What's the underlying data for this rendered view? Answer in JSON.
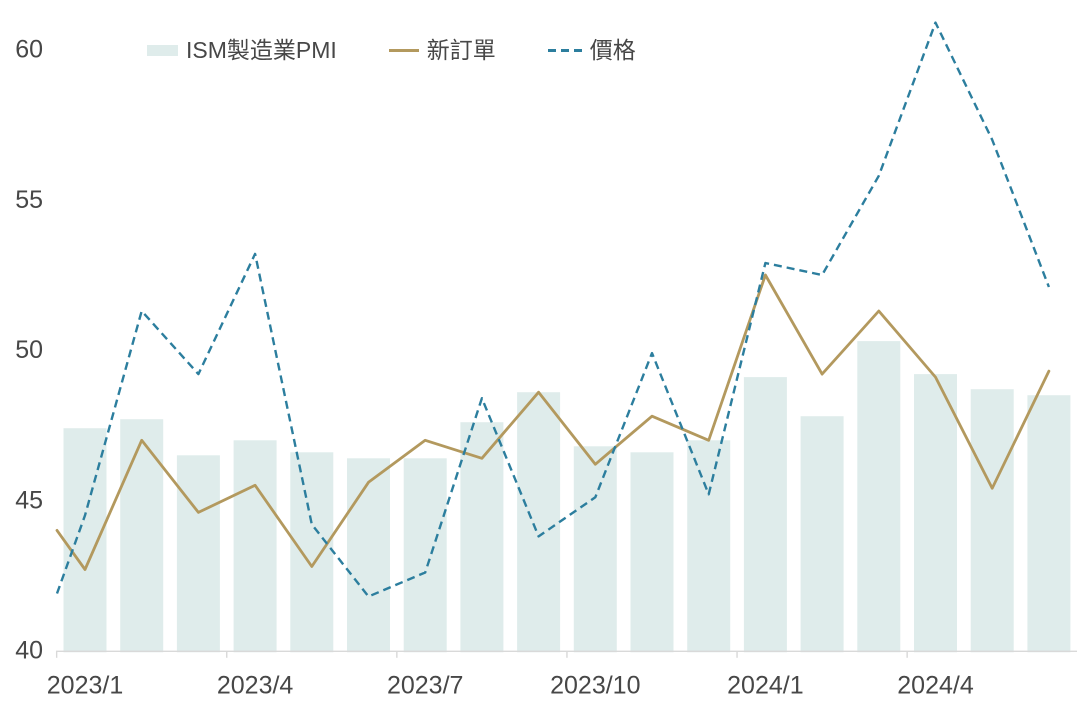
{
  "chart_data": {
    "type": "bar+line combo",
    "title": "",
    "categories": [
      "2023/1",
      "2023/2",
      "2023/3",
      "2023/4",
      "2023/5",
      "2023/6",
      "2023/7",
      "2023/8",
      "2023/9",
      "2023/10",
      "2023/11",
      "2023/12",
      "2024/1",
      "2024/2",
      "2024/3",
      "2024/4",
      "2024/5",
      "2024/6"
    ],
    "series": [
      {
        "name": "ISM製造業PMI",
        "type": "bar",
        "color": "#DFECEB",
        "values": [
          47.4,
          47.7,
          46.5,
          47.0,
          46.6,
          46.4,
          46.4,
          47.6,
          48.6,
          46.8,
          46.6,
          47.0,
          49.1,
          47.8,
          50.3,
          49.2,
          48.7,
          48.5
        ]
      },
      {
        "name": "新訂單",
        "type": "line",
        "color": "#B3995E",
        "values": [
          42.7,
          47.0,
          44.6,
          45.5,
          42.8,
          45.6,
          47.0,
          46.4,
          48.6,
          46.2,
          47.8,
          47.0,
          52.5,
          49.2,
          51.3,
          49.1,
          45.4,
          49.3
        ],
        "edge_start_value": 44.0
      },
      {
        "name": "價格",
        "type": "line-dashed",
        "color": "#2C7E9E",
        "values": [
          44.5,
          51.3,
          49.2,
          53.2,
          44.2,
          41.8,
          42.6,
          48.4,
          43.8,
          45.1,
          49.9,
          45.2,
          52.9,
          52.5,
          55.8,
          60.9,
          57.0,
          52.1
        ],
        "edge_start_value": 41.9
      }
    ],
    "y_axis": {
      "ticks": [
        40,
        45,
        50,
        55,
        60
      ],
      "range": [
        40,
        61
      ],
      "label_color": "#474747"
    },
    "x_axis": {
      "tick_labels": [
        "2023/1",
        "2023/4",
        "2023/7",
        "2023/10",
        "2024/1",
        "2024/4"
      ],
      "tick_label_month_indices": [
        0,
        3,
        6,
        9,
        12,
        15
      ],
      "axis_color": "#D9D9D9",
      "label_color": "#474747"
    },
    "legend_position": "top",
    "grid": "off"
  }
}
